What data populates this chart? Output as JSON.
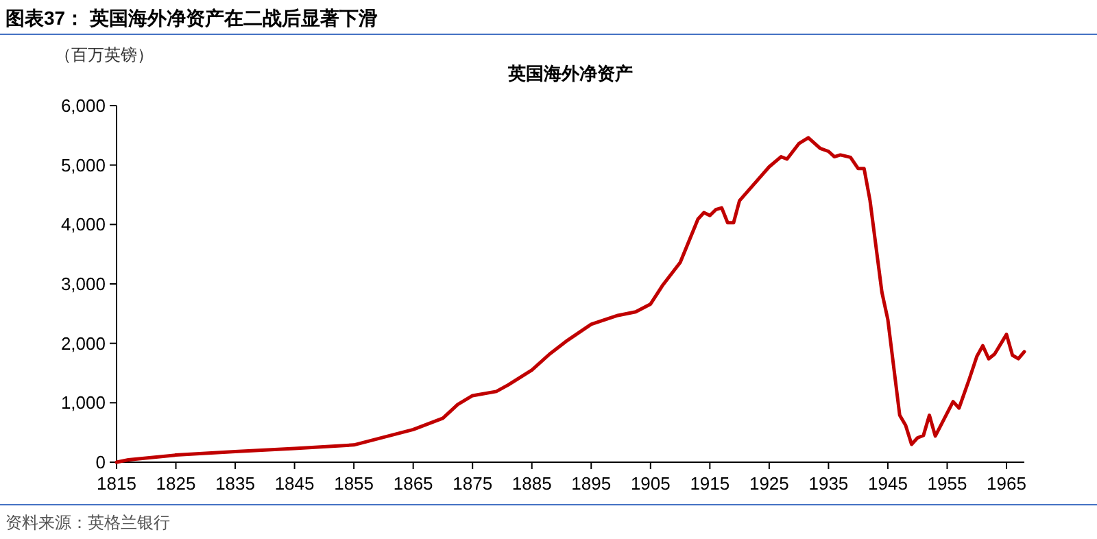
{
  "chart_data": {
    "type": "line",
    "title": "图表37： 英国海外净资产在二战后显著下滑",
    "subtitle": "英国海外净资产",
    "ylabel": "（百万英镑）",
    "annotations": [
      "资料来源：英格兰银行"
    ],
    "x": [
      1815,
      1817,
      1825,
      1835,
      1845,
      1855,
      1860,
      1865,
      1870,
      1872.5,
      1875,
      1879,
      1881,
      1885,
      1888,
      1891,
      1895,
      1899.5,
      1902.5,
      1905,
      1907,
      1910,
      1913,
      1914,
      1915,
      1916,
      1917,
      1918,
      1919,
      1920,
      1925,
      1927,
      1928,
      1930,
      1931.6,
      1933.6,
      1935,
      1936,
      1937,
      1938.7,
      1940,
      1941,
      1942,
      1943.3,
      1944,
      1945,
      1947,
      1948,
      1949,
      1950,
      1951,
      1952,
      1953,
      1956,
      1957,
      1958.7,
      1960,
      1961,
      1962,
      1963,
      1965,
      1966,
      1967,
      1968
    ],
    "series": [
      {
        "color": "#c00000",
        "values": [
          0,
          40,
          120,
          180,
          230,
          290,
          420,
          550,
          740,
          970,
          1120,
          1190,
          1300,
          1550,
          1820,
          2050,
          2320,
          2470,
          2530,
          2660,
          2970,
          3360,
          4090,
          4200,
          4150,
          4250,
          4280,
          4030,
          4030,
          4400,
          4970,
          5140,
          5100,
          5360,
          5460,
          5280,
          5230,
          5140,
          5170,
          5130,
          4940,
          4940,
          4400,
          3400,
          2860,
          2400,
          790,
          620,
          300,
          410,
          450,
          790,
          440,
          1020,
          910,
          1390,
          1780,
          1960,
          1740,
          1820,
          2150,
          1800,
          1740,
          1860
        ]
      }
    ],
    "xlim": [
      1815,
      1968
    ],
    "xticks": [
      1815,
      1825,
      1835,
      1845,
      1855,
      1865,
      1875,
      1885,
      1895,
      1905,
      1915,
      1925,
      1935,
      1945,
      1955,
      1965
    ],
    "ylim": [
      0,
      6000
    ],
    "yticks": [
      0,
      {
        "value": 1000,
        "label": "1,000"
      },
      {
        "value": 2000,
        "label": "2,000"
      },
      {
        "value": 3000,
        "label": "3,000"
      },
      {
        "value": 4000,
        "label": "4,000"
      },
      {
        "value": 5000,
        "label": "5,000"
      },
      {
        "value": 6000,
        "label": "6,000"
      }
    ],
    "grid": false,
    "marker": "none",
    "line_style": "solid"
  }
}
